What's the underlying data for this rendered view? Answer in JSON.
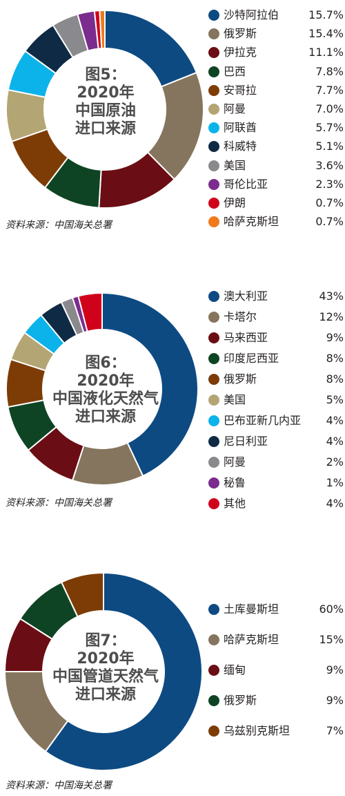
{
  "colors": {
    "navy": "#0d4a82",
    "taupe": "#86755e",
    "maroon": "#6b0d14",
    "green": "#0e4423",
    "brown": "#7d3c06",
    "khaki": "#b4a574",
    "sky": "#0bb3ea",
    "darknavy": "#0f2a45",
    "gray": "#8a8a8e",
    "purple": "#7b2c8e",
    "red": "#d0021b",
    "orange": "#f07a1b"
  },
  "chart_data": [
    {
      "type": "pie",
      "title_lines": [
        "图5：",
        "2020年",
        "中国原油",
        "进口来源"
      ],
      "source": "资料来源：中国海关总署",
      "legend_position": "right",
      "slices": [
        {
          "name": "沙特阿拉伯",
          "value": 15.7,
          "label": "15.7%",
          "color": "#0d4a82"
        },
        {
          "name": "俄罗斯",
          "value": 15.4,
          "label": "15.4%",
          "color": "#86755e"
        },
        {
          "name": "伊拉克",
          "value": 11.1,
          "label": "11.1%",
          "color": "#6b0d14"
        },
        {
          "name": "巴西",
          "value": 7.8,
          "label": "7.8%",
          "color": "#0e4423"
        },
        {
          "name": "安哥拉",
          "value": 7.7,
          "label": "7.7%",
          "color": "#7d3c06"
        },
        {
          "name": "阿曼",
          "value": 7.0,
          "label": "7.0%",
          "color": "#b4a574"
        },
        {
          "name": "阿联酋",
          "value": 5.7,
          "label": "5.7%",
          "color": "#0bb3ea"
        },
        {
          "name": "科威特",
          "value": 5.1,
          "label": "5.1%",
          "color": "#0f2a45"
        },
        {
          "name": "美国",
          "value": 3.6,
          "label": "3.6%",
          "color": "#8a8a8e"
        },
        {
          "name": "哥伦比亚",
          "value": 2.3,
          "label": "2.3%",
          "color": "#7b2c8e"
        },
        {
          "name": "伊朗",
          "value": 0.7,
          "label": "0.7%",
          "color": "#d0021b"
        },
        {
          "name": "哈萨克斯坦",
          "value": 0.7,
          "label": "0.7%",
          "color": "#f07a1b"
        }
      ]
    },
    {
      "type": "pie",
      "title_lines": [
        "图6：",
        "2020年",
        "中国液化天然气",
        "进口来源"
      ],
      "source": "资料来源：中国海关总署",
      "legend_position": "right",
      "slices": [
        {
          "name": "澳大利亚",
          "value": 43,
          "label": "43%",
          "color": "#0d4a82"
        },
        {
          "name": "卡塔尔",
          "value": 12,
          "label": "12%",
          "color": "#86755e"
        },
        {
          "name": "马来西亚",
          "value": 9,
          "label": "9%",
          "color": "#6b0d14"
        },
        {
          "name": "印度尼西亚",
          "value": 8,
          "label": "8%",
          "color": "#0e4423"
        },
        {
          "name": "俄罗斯",
          "value": 8,
          "label": "8%",
          "color": "#7d3c06"
        },
        {
          "name": "美国",
          "value": 5,
          "label": "5%",
          "color": "#b4a574"
        },
        {
          "name": "巴布亚新几内亚",
          "value": 4,
          "label": "4%",
          "color": "#0bb3ea"
        },
        {
          "name": "尼日利亚",
          "value": 4,
          "label": "4%",
          "color": "#0f2a45"
        },
        {
          "name": "阿曼",
          "value": 2,
          "label": "2%",
          "color": "#8a8a8e"
        },
        {
          "name": "秘鲁",
          "value": 1,
          "label": "1%",
          "color": "#7b2c8e"
        },
        {
          "name": "其他",
          "value": 4,
          "label": "4%",
          "color": "#d0021b"
        }
      ]
    },
    {
      "type": "pie",
      "title_lines": [
        "图7：",
        "2020年",
        "中国管道天然气",
        "进口来源"
      ],
      "source": "资料来源：中国海关总署",
      "legend_position": "right",
      "slices": [
        {
          "name": "土库曼斯坦",
          "value": 60,
          "label": "60%",
          "color": "#0d4a82"
        },
        {
          "name": "哈萨克斯坦",
          "value": 15,
          "label": "15%",
          "color": "#86755e"
        },
        {
          "name": "缅甸",
          "value": 9,
          "label": "9%",
          "color": "#6b0d14"
        },
        {
          "name": "俄罗斯",
          "value": 9,
          "label": "9%",
          "color": "#0e4423"
        },
        {
          "name": "乌兹别克斯坦",
          "value": 7,
          "label": "7%",
          "color": "#7d3c06"
        }
      ]
    }
  ]
}
